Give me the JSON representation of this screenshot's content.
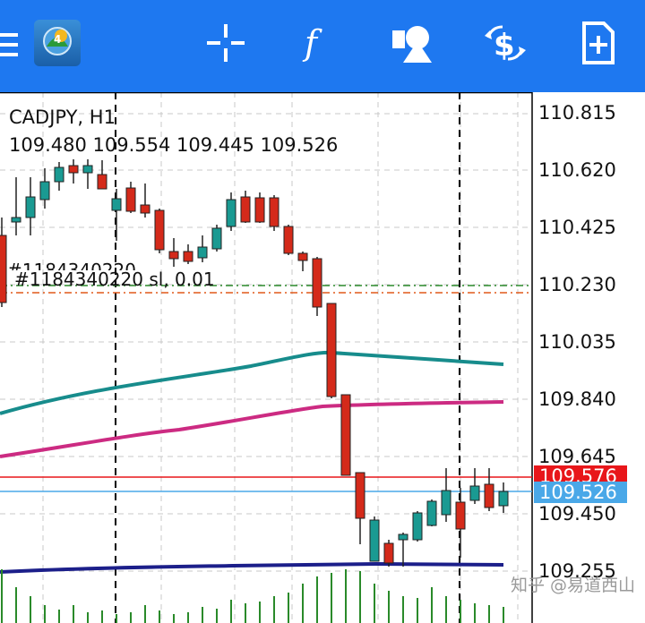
{
  "toolbar": {
    "menu_icon": "hamburger-menu-icon",
    "app_icon": "metatrader-app-icon",
    "crosshair_icon": "crosshair-icon",
    "indicators_icon": "function-f-icon",
    "objects_icon": "shapes-objects-icon",
    "trade_icon": "dollar-exchange-icon",
    "new_order_icon": "document-add-icon",
    "bg_color": "#1e78f0"
  },
  "chart": {
    "symbol": "CADJPY, H1",
    "ohlc": "109.480 109.554 109.445 109.526",
    "order_label": "#1184340220 sl, 0.01",
    "order_ghost": "#1184340220",
    "price_axis": [
      "110.815",
      "110.620",
      "110.425",
      "110.230",
      "110.035",
      "109.840",
      "109.645",
      "109.450",
      "109.255"
    ],
    "ask_tag": "109.576",
    "bid_tag": "109.526",
    "bull_color": "#1a9a92",
    "bear_color": "#d42a1a",
    "ask_color": "#e8161a",
    "bid_color": "#4aa8e8",
    "ma_colors": [
      "#178c8c",
      "#cc2b82",
      "#1c1f8a"
    ],
    "sl_line_color": "#2a8a2a",
    "order_line_color": "#e0581a",
    "volume_color": "#2a8a2a"
  },
  "watermark": "知乎 @易道西山"
}
